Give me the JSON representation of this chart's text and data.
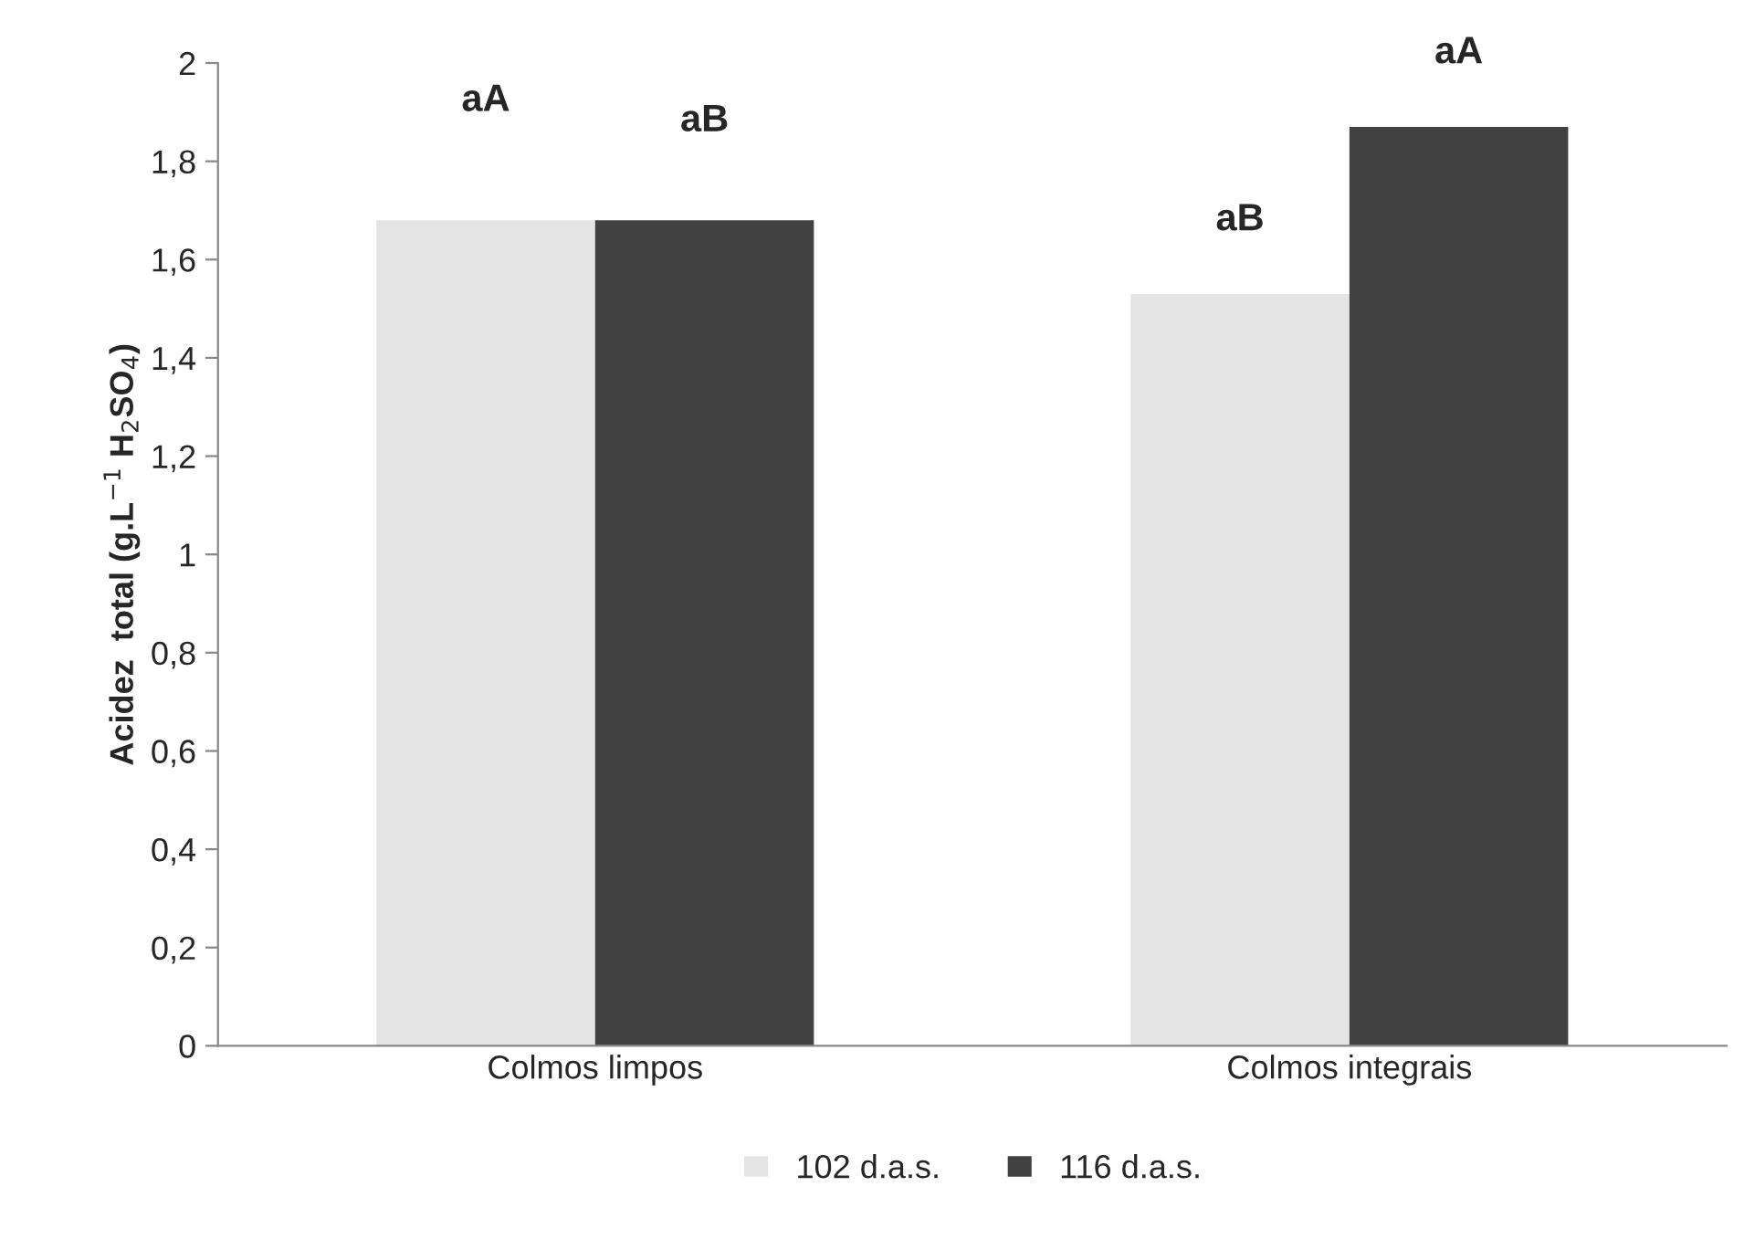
{
  "chart_data": {
    "type": "bar",
    "ylabel": "Acidez  total (g.L$^{−1}$ H$_{2}$SO$_{4}$)",
    "categories": [
      "Colmos limpos",
      "Colmos integrais"
    ],
    "series": [
      {
        "name": "102 d.a.s.",
        "color": "#e4e4e4",
        "values": [
          1.68,
          1.53
        ]
      },
      {
        "name": "116 d.a.s.",
        "color": "#414141",
        "values": [
          1.68,
          1.87
        ]
      }
    ],
    "ylim": [
      0,
      2
    ],
    "yticks": [
      0,
      {
        "value": 0.2,
        "label": "0,2"
      },
      {
        "value": 0.4,
        "label": "0,4"
      },
      {
        "value": 0.6,
        "label": "0,6"
      },
      {
        "value": 0.8,
        "label": "0,8"
      },
      1,
      {
        "value": 1.2,
        "label": "1,2"
      },
      {
        "value": 1.4,
        "label": "1,4"
      },
      {
        "value": 1.6,
        "label": "1,6"
      },
      {
        "value": 1.8,
        "label": "1,8"
      },
      2
    ],
    "grid": false,
    "legend": "bottom",
    "annotations": [
      "aA",
      "aB",
      "aB",
      "aA"
    ]
  }
}
